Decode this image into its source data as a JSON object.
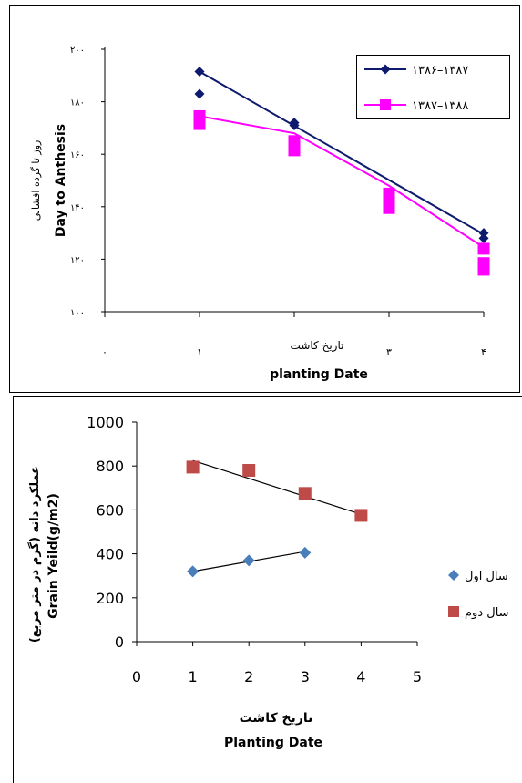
{
  "chart_data": [
    {
      "type": "line",
      "title": "",
      "ylabel_fa": "روز تا گرده افشانی",
      "ylabel": "Day to Anthesis",
      "xlabel_fa": "تاریخ کاشت",
      "xlabel": "planting Date",
      "ylim": [
        100,
        200
      ],
      "xlim": [
        0,
        4
      ],
      "yticks": [
        "۱۰۰",
        "۱۲۰",
        "۱۴۰",
        "۱۶۰",
        "۱۸۰",
        "۲۰۰"
      ],
      "xticks": [
        "۰",
        "۱",
        "",
        "۳",
        "۴"
      ],
      "legend_position": "top-right",
      "series": [
        {
          "name": "۱۳۸۶–۱۳۸۷",
          "color": "#0d1a6e",
          "marker": "diamond",
          "trend": [
            [
              1,
              191.5
            ],
            [
              4,
              129.5
            ]
          ],
          "points": [
            [
              1,
              191.5
            ],
            [
              1,
              183
            ],
            [
              2,
              172
            ],
            [
              2,
              171
            ],
            [
              4,
              130
            ],
            [
              4,
              128
            ]
          ]
        },
        {
          "name": "۱۳۸۷–۱۳۸۸",
          "color": "#ff00ff",
          "marker": "square",
          "trend": [
            [
              1,
              174.5
            ],
            [
              2,
              168
            ],
            [
              3,
              148
            ],
            [
              4,
              124.5
            ]
          ],
          "points": [
            [
              1,
              174.5
            ],
            [
              1,
              171.5
            ],
            [
              2,
              165
            ],
            [
              2,
              161.5
            ],
            [
              3,
              145
            ],
            [
              3,
              142
            ],
            [
              3,
              139.5
            ],
            [
              4,
              124
            ],
            [
              4,
              118.5
            ],
            [
              4,
              116
            ]
          ]
        }
      ]
    },
    {
      "type": "scatter",
      "title": "",
      "ylabel_fa": "عملکرد دانه (گرم در متر مربع)",
      "ylabel": "Grain Yeild(g/m2)",
      "xlabel_fa": "تاریخ کاشت",
      "xlabel": "Planting Date",
      "ylim": [
        0,
        1000
      ],
      "xlim": [
        0,
        5
      ],
      "yticks": [
        "0",
        "200",
        "400",
        "600",
        "800",
        "1000"
      ],
      "xticks": [
        "0",
        "1",
        "2",
        "3",
        "4",
        "5"
      ],
      "legend_position": "right",
      "series": [
        {
          "name": "سال اول",
          "color": "#4a7ebb",
          "marker": "diamond",
          "x": [
            1,
            2,
            3
          ],
          "y": [
            320,
            370,
            405
          ],
          "trend": [
            [
              1,
              320
            ],
            [
              3,
              410
            ]
          ]
        },
        {
          "name": "سال دوم",
          "color": "#be4b48",
          "marker": "square",
          "x": [
            1,
            2,
            3,
            4
          ],
          "y": [
            795,
            780,
            675,
            575
          ],
          "trend": [
            [
              1,
              825
            ],
            [
              4,
              580
            ]
          ]
        }
      ]
    }
  ]
}
